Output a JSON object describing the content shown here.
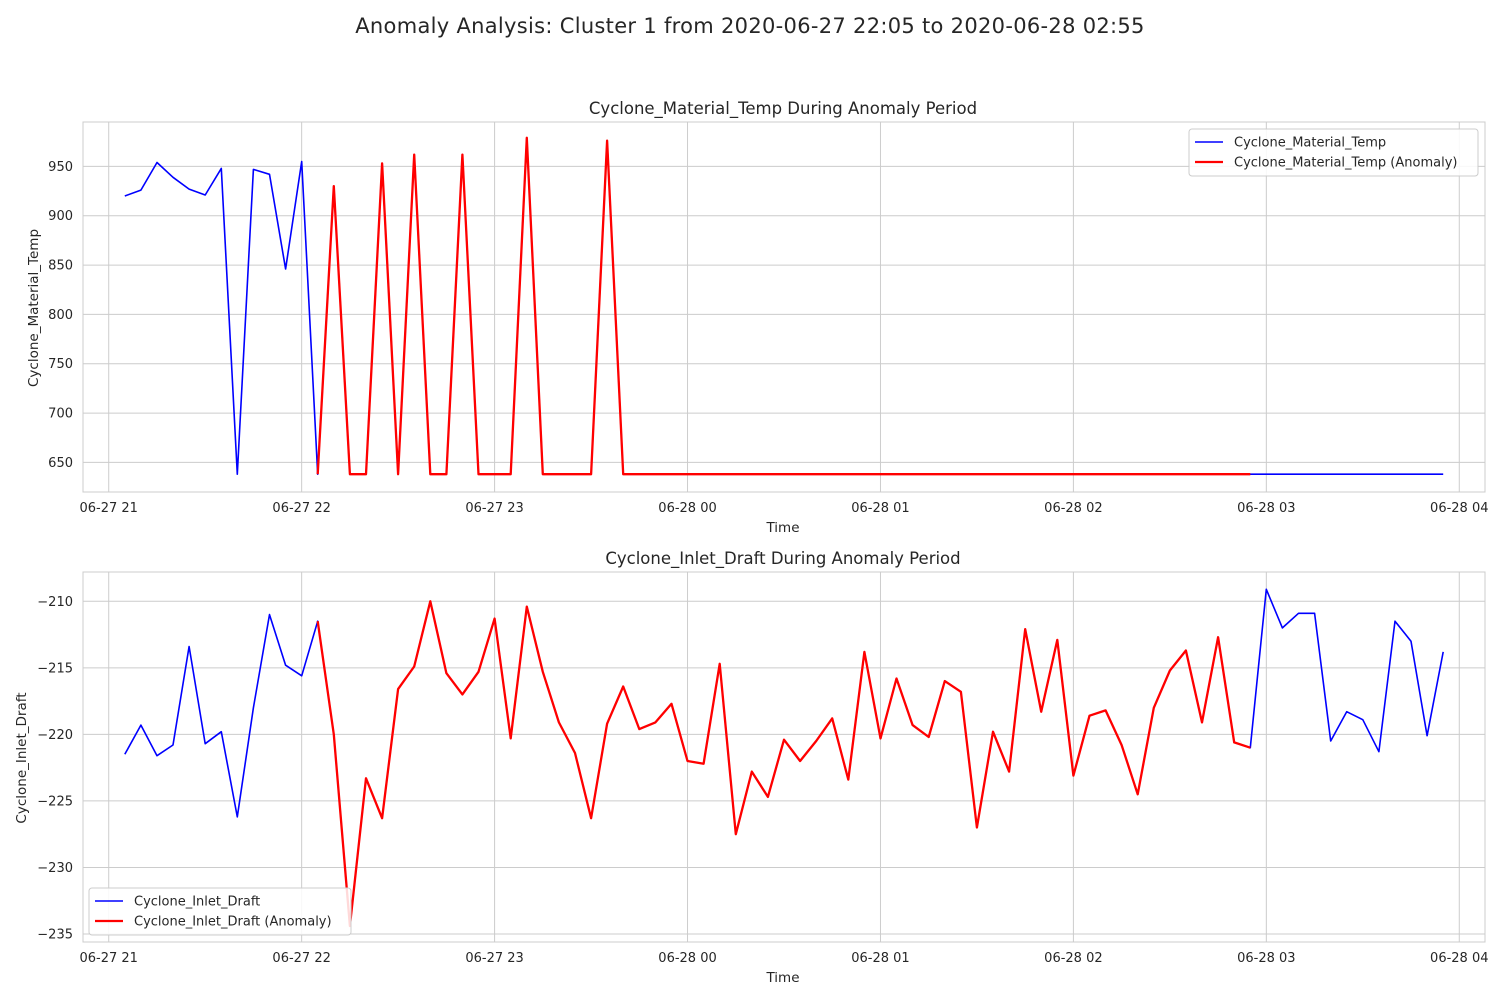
{
  "suptitle": "Anomaly Analysis: Cluster 1 from 2020-06-27 22:05 to 2020-06-28 02:55",
  "chart_data": [
    {
      "type": "line",
      "title": "Cyclone_Material_Temp During Anomaly Period",
      "xlabel": "Time",
      "ylabel": "Cyclone_Material_Temp",
      "xlim": [
        "2020-06-27 20:52",
        "2020-06-28 04:08"
      ],
      "ylim": [
        620,
        995
      ],
      "x_ticks": [
        "06-27 21",
        "06-27 22",
        "06-27 23",
        "06-28 00",
        "06-28 01",
        "06-28 02",
        "06-28 03",
        "06-28 04"
      ],
      "y_ticks": [
        650,
        700,
        750,
        800,
        850,
        900,
        950
      ],
      "grid": true,
      "legend_position": "top-right",
      "start_time": "2020-06-27 21:05",
      "interval_minutes": 5,
      "series": [
        {
          "name": "Cyclone_Material_Temp",
          "color": "#0000ff",
          "time_range": [
            "2020-06-27 21:05",
            "2020-06-28 03:55"
          ],
          "values": [
            920,
            926,
            954,
            939,
            927,
            921,
            948,
            638,
            947,
            942,
            846,
            955,
            638,
            930,
            638,
            638,
            953,
            638,
            962,
            638,
            638,
            962,
            638,
            638,
            638,
            979,
            638,
            638,
            638,
            638,
            976,
            638,
            638,
            638,
            638,
            638,
            638,
            638,
            638,
            638,
            638,
            638,
            638,
            638,
            638,
            638,
            638,
            638,
            638,
            638,
            638,
            638,
            638,
            638,
            638,
            638,
            638,
            638,
            638,
            638,
            638,
            638,
            638,
            638,
            638,
            638,
            638,
            638,
            638,
            638,
            638,
            638,
            638,
            638,
            638,
            638,
            638,
            638,
            638,
            638,
            638,
            638,
            638
          ]
        },
        {
          "name": "Cyclone_Material_Temp (Anomaly)",
          "color": "#ff0000",
          "time_range": [
            "2020-06-27 22:05",
            "2020-06-28 02:55"
          ]
        }
      ]
    },
    {
      "type": "line",
      "title": "Cyclone_Inlet_Draft During Anomaly Period",
      "xlabel": "Time",
      "ylabel": "Cyclone_Inlet_Draft",
      "xlim": [
        "2020-06-27 20:52",
        "2020-06-28 04:08"
      ],
      "ylim": [
        -235.6,
        -207.8
      ],
      "x_ticks": [
        "06-27 21",
        "06-27 22",
        "06-27 23",
        "06-28 00",
        "06-28 01",
        "06-28 02",
        "06-28 03",
        "06-28 04"
      ],
      "y_ticks": [
        -210,
        -215,
        -220,
        -225,
        -230,
        -235
      ],
      "y_tick_labels": [
        "−210",
        "−215",
        "−220",
        "−225",
        "−230",
        "−235"
      ],
      "grid": true,
      "legend_position": "bottom-left",
      "start_time": "2020-06-27 21:05",
      "interval_minutes": 5,
      "series": [
        {
          "name": "Cyclone_Inlet_Draft",
          "color": "#0000ff",
          "time_range": [
            "2020-06-27 21:05",
            "2020-06-28 03:55"
          ],
          "values": [
            -221.5,
            -219.3,
            -221.6,
            -220.8,
            -213.4,
            -220.7,
            -219.8,
            -226.2,
            -218.0,
            -211.0,
            -214.8,
            -215.6,
            -211.5,
            -220.0,
            -234.4,
            -223.3,
            -226.3,
            -216.6,
            -214.9,
            -210.0,
            -215.4,
            -217.0,
            -215.3,
            -211.3,
            -220.3,
            -210.4,
            -215.3,
            -219.1,
            -221.4,
            -226.3,
            -219.2,
            -216.4,
            -219.6,
            -219.1,
            -217.7,
            -222.0,
            -222.2,
            -214.7,
            -227.5,
            -222.8,
            -224.7,
            -220.4,
            -222.0,
            -220.5,
            -218.8,
            -223.4,
            -213.8,
            -220.3,
            -215.8,
            -219.3,
            -220.2,
            -216.0,
            -216.8,
            -227.0,
            -219.8,
            -222.8,
            -212.1,
            -218.3,
            -212.9,
            -223.1,
            -218.6,
            -218.2,
            -220.8,
            -224.5,
            -218.0,
            -215.2,
            -213.7,
            -219.1,
            -212.7,
            -220.6,
            -221.0,
            -209.1,
            -212.0,
            -210.9,
            -210.9,
            -220.5,
            -218.3,
            -218.9,
            -221.3,
            -211.5,
            -213.0,
            -220.1,
            -213.8
          ]
        },
        {
          "name": "Cyclone_Inlet_Draft (Anomaly)",
          "color": "#ff0000",
          "time_range": [
            "2020-06-27 22:05",
            "2020-06-28 02:55"
          ]
        }
      ]
    }
  ]
}
